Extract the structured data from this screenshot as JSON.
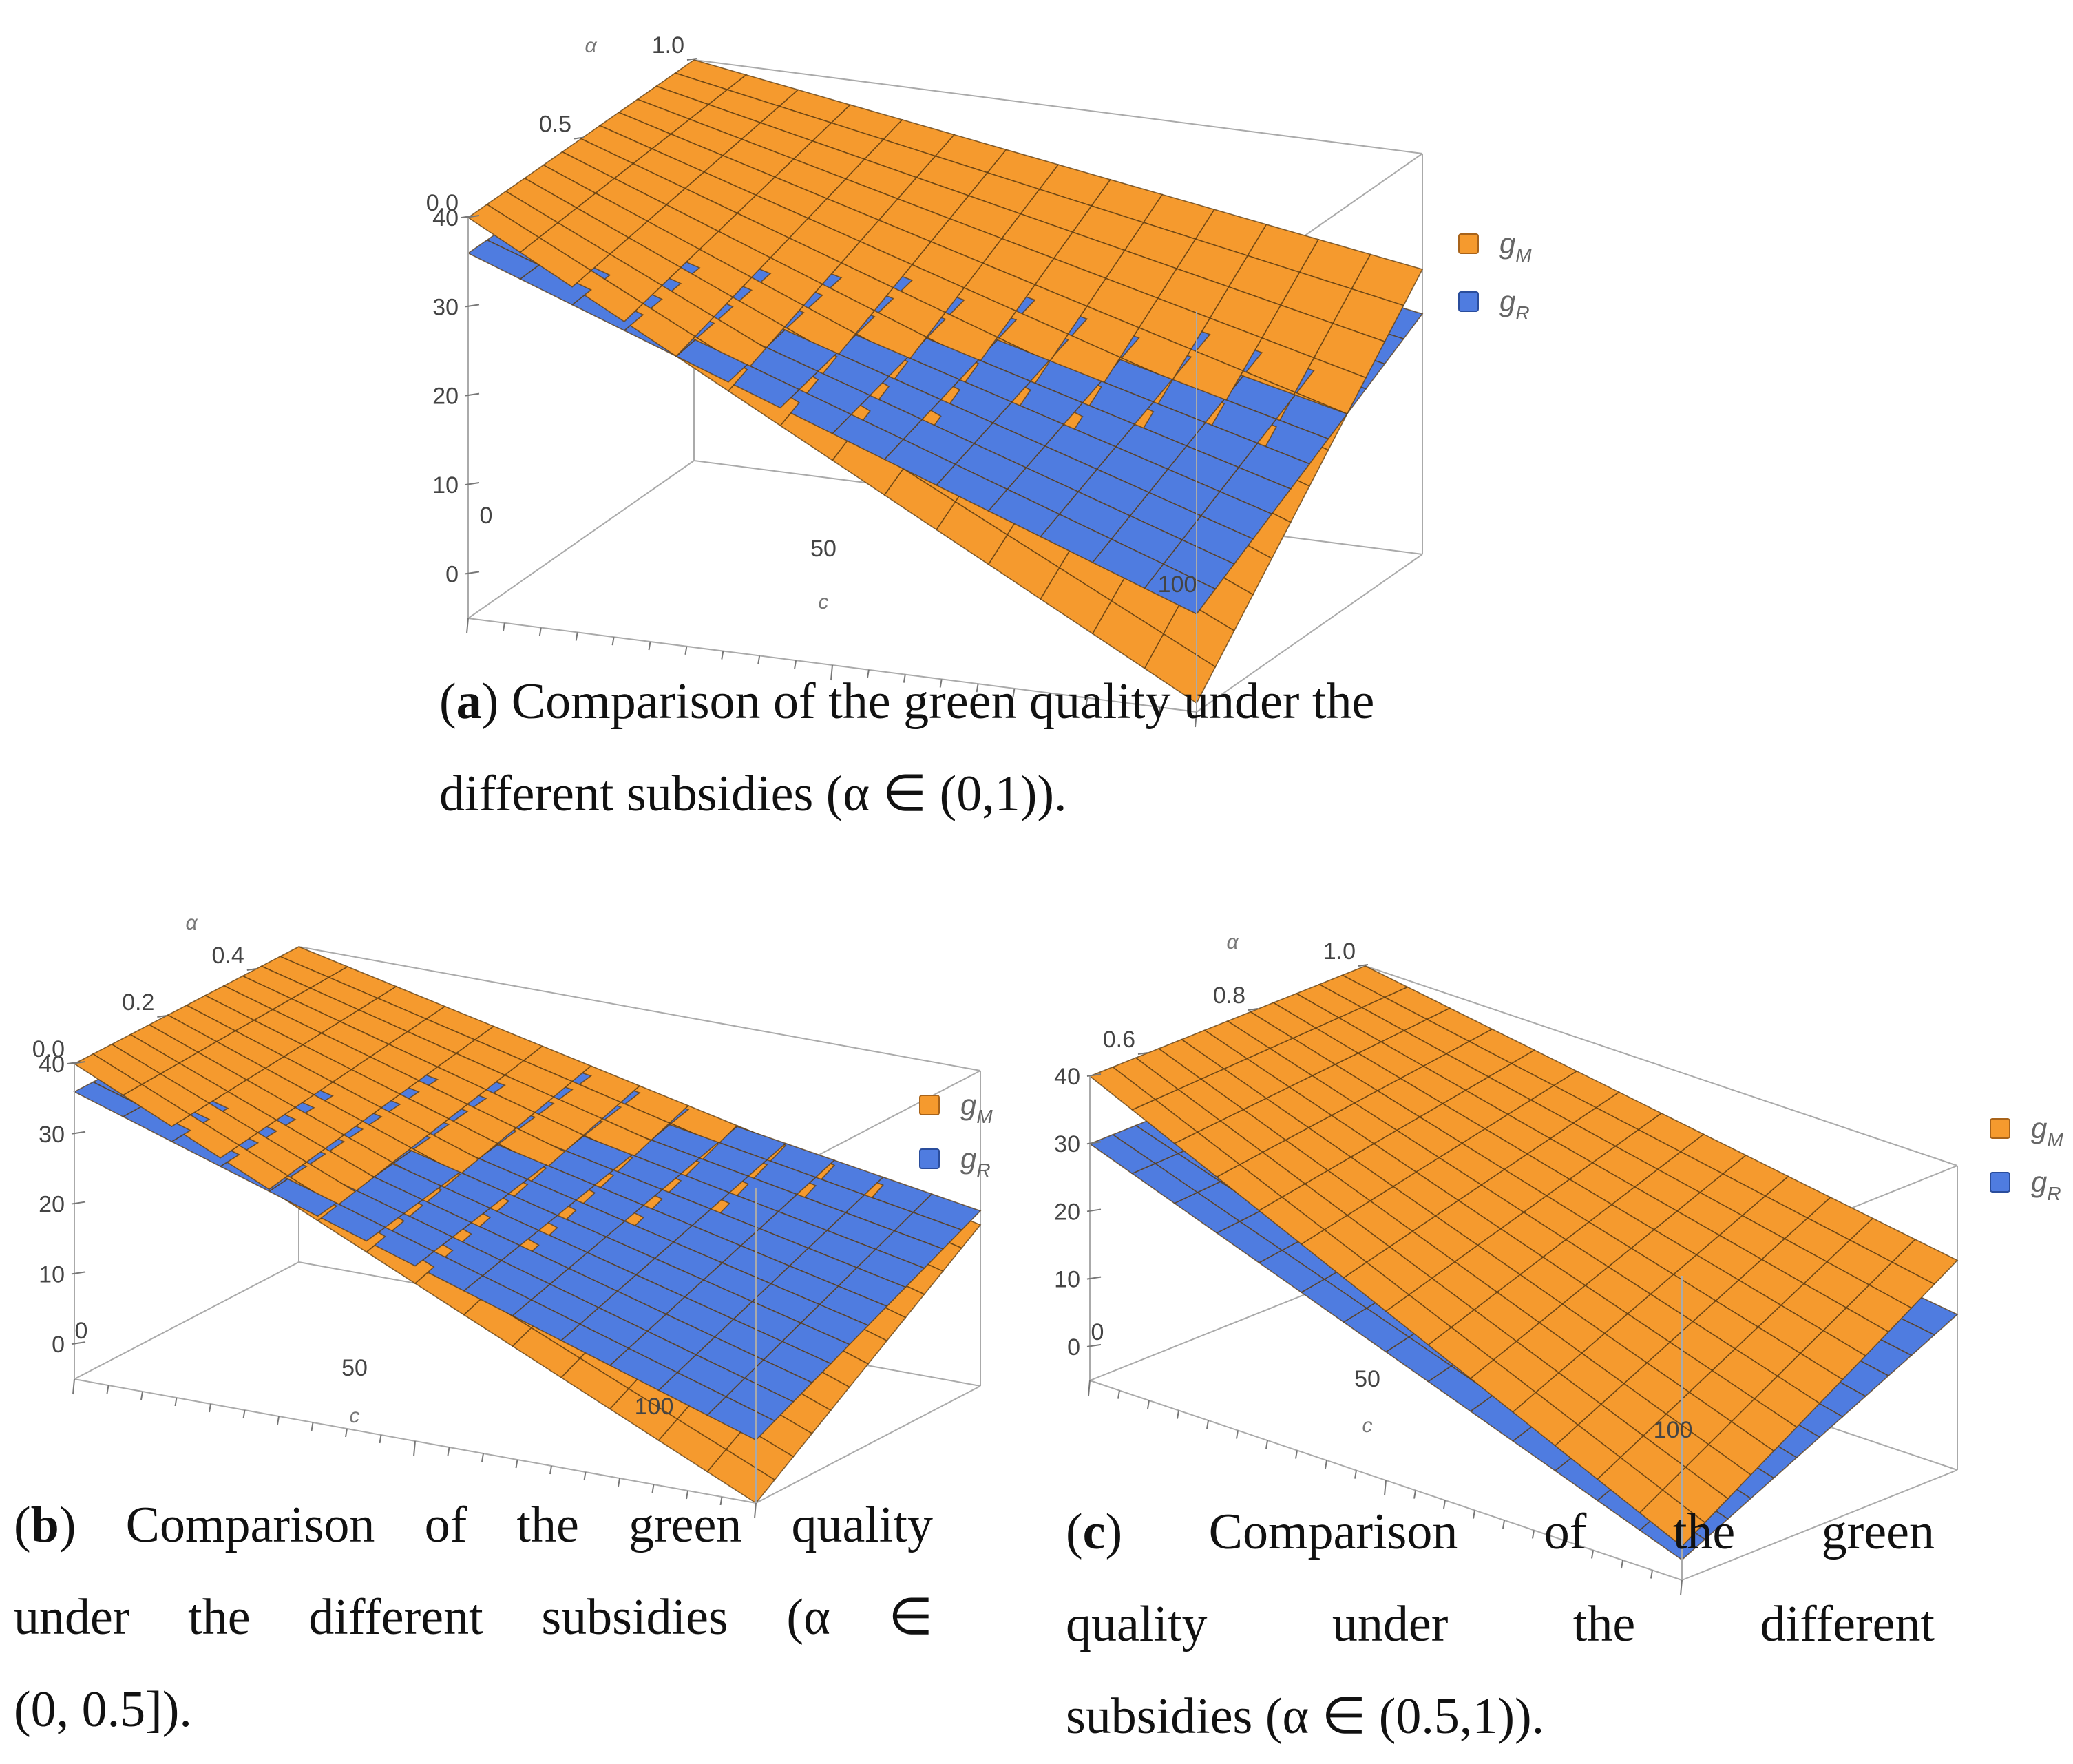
{
  "chart_data": [
    {
      "id": "a",
      "type": "surface3d",
      "title": "Comparison of the green quality under the different subsidies (α ∈ (0,1)).",
      "xlabel": "c",
      "ylabel": "α",
      "zlabel": "",
      "xlim": [
        0,
        100
      ],
      "ylim": [
        0,
        1
      ],
      "zlim": [
        -5,
        40
      ],
      "x_ticks": [
        "0",
        "50",
        "100"
      ],
      "y_ticks": [
        "0.0",
        "0.5",
        "1.0"
      ],
      "z_ticks": [
        "0",
        "10",
        "20",
        "30",
        "40"
      ],
      "series": [
        {
          "name": "gM",
          "color": "#f59a2e",
          "corners": {
            "c0_alo": 40,
            "c0_ahi": 40,
            "c100_alo": -4,
            "c100_ahi": 27
          }
        },
        {
          "name": "gR",
          "color": "#4f7ce0",
          "corners": {
            "c0_alo": 36,
            "c0_ahi": 36,
            "c100_alo": 6,
            "c100_ahi": 22
          }
        }
      ],
      "legend": [
        {
          "sym": "g",
          "sub": "M",
          "color": "#f59a2e"
        },
        {
          "sym": "g",
          "sub": "R",
          "color": "#4f7ce0"
        }
      ]
    },
    {
      "id": "b",
      "type": "surface3d",
      "title": "Comparison of the green quality under the different subsidies (α ∈ (0, 0.5]).",
      "xlabel": "c",
      "ylabel": "α",
      "zlabel": "",
      "xlim": [
        0,
        100
      ],
      "ylim": [
        0,
        0.5
      ],
      "zlim": [
        -5,
        40
      ],
      "x_ticks": [
        "0",
        "50",
        "100"
      ],
      "y_ticks": [
        "0.0",
        "0.2",
        "0.4"
      ],
      "z_ticks": [
        "0",
        "10",
        "20",
        "30",
        "40"
      ],
      "series": [
        {
          "name": "gM",
          "color": "#f59a2e",
          "corners": {
            "c0_alo": 40,
            "c0_ahi": 40,
            "c100_alo": -5,
            "c100_ahi": 18
          }
        },
        {
          "name": "gR",
          "color": "#4f7ce0",
          "corners": {
            "c0_alo": 36,
            "c0_ahi": 36,
            "c100_alo": 4,
            "c100_ahi": 20
          }
        }
      ],
      "legend": [
        {
          "sym": "g",
          "sub": "M",
          "color": "#f59a2e"
        },
        {
          "sym": "g",
          "sub": "R",
          "color": "#4f7ce0"
        }
      ]
    },
    {
      "id": "c",
      "type": "surface3d",
      "title": "Comparison of the green quality under the different subsidies (α ∈ (0.5,1)).",
      "xlabel": "c",
      "ylabel": "α",
      "zlabel": "",
      "xlim": [
        0,
        100
      ],
      "ylim": [
        0.5,
        1
      ],
      "zlim": [
        -5,
        40
      ],
      "x_ticks": [
        "0",
        "50",
        "100"
      ],
      "y_ticks": [
        "0.6",
        "0.8",
        "1.0"
      ],
      "z_ticks": [
        "0",
        "10",
        "20",
        "30",
        "40"
      ],
      "series": [
        {
          "name": "gM",
          "color": "#f59a2e",
          "corners": {
            "c0_alo": 40,
            "c0_ahi": 40,
            "c100_alo": 0,
            "c100_ahi": 26
          }
        },
        {
          "name": "gR",
          "color": "#4f7ce0",
          "corners": {
            "c0_alo": 30,
            "c0_ahi": 30,
            "c100_alo": -2,
            "c100_ahi": 18
          }
        }
      ],
      "legend": [
        {
          "sym": "g",
          "sub": "M",
          "color": "#f59a2e"
        },
        {
          "sym": "g",
          "sub": "R",
          "color": "#4f7ce0"
        }
      ]
    }
  ],
  "captions": {
    "a": {
      "letter": "a",
      "line1": ") Comparison of the green quality under the",
      "line2": "different subsidies  (α ∈ (0,1))."
    },
    "b": {
      "letter": "b",
      "line1": ") Comparison of the green quality",
      "line2": "under the different subsidies (α ∈",
      "line3": "(0, 0.5])."
    },
    "c": {
      "letter": "c",
      "line1": ") Comparison of the green",
      "line2": "quality under the different",
      "line3": "subsidies  (α ∈ (0.5,1))."
    }
  },
  "colors": {
    "orange": "#f59a2e",
    "blue": "#4f7ce0",
    "grid": "#5a3a10",
    "box": "#aaaaaa"
  }
}
